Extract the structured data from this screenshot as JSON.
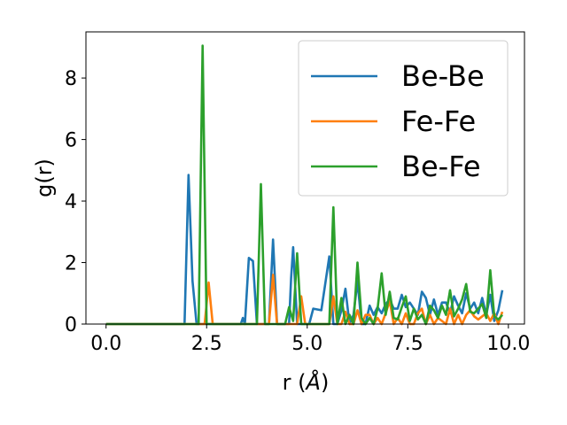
{
  "chart_data": {
    "type": "line",
    "title": "",
    "xlabel_main": "r (",
    "xlabel_unit": "Å",
    "xlabel_end": ")",
    "ylabel": "g(r)",
    "xlim": [
      -0.5,
      10.4
    ],
    "ylim": [
      0,
      9.5
    ],
    "xticks": [
      0.0,
      2.5,
      5.0,
      7.5,
      10.0
    ],
    "xtick_labels": [
      "0.0",
      "2.5",
      "5.0",
      "7.5",
      "10.0"
    ],
    "yticks": [
      0,
      2,
      4,
      6,
      8
    ],
    "ytick_labels": [
      "0",
      "2",
      "4",
      "6",
      "8"
    ],
    "grid": false,
    "legend_position": "top-right",
    "series": [
      {
        "name": "Be-Be",
        "color": "#1f77b4",
        "x": [
          0.0,
          1.95,
          2.05,
          2.15,
          2.25,
          3.35,
          3.4,
          3.45,
          3.55,
          3.65,
          3.75,
          4.05,
          4.15,
          4.25,
          4.55,
          4.6,
          4.65,
          4.75,
          4.85,
          5.05,
          5.15,
          5.35,
          5.55,
          5.65,
          5.75,
          5.85,
          5.95,
          6.05,
          6.15,
          6.25,
          6.35,
          6.45,
          6.55,
          6.65,
          6.75,
          6.85,
          6.95,
          7.05,
          7.15,
          7.25,
          7.35,
          7.45,
          7.55,
          7.65,
          7.75,
          7.85,
          7.95,
          8.05,
          8.15,
          8.25,
          8.35,
          8.45,
          8.55,
          8.65,
          8.75,
          8.85,
          8.95,
          9.05,
          9.15,
          9.25,
          9.35,
          9.45,
          9.55,
          9.65,
          9.75,
          9.85
        ],
        "y": [
          0.0,
          0.0,
          4.85,
          1.4,
          0.0,
          0.0,
          0.2,
          0.0,
          2.15,
          2.05,
          0.0,
          0.0,
          2.75,
          0.0,
          0.0,
          1.5,
          2.5,
          0.0,
          0.0,
          0.0,
          0.5,
          0.45,
          2.2,
          0.0,
          0.0,
          0.45,
          1.15,
          0.0,
          0.3,
          1.4,
          0.0,
          0.0,
          0.6,
          0.3,
          0.55,
          0.35,
          0.65,
          0.8,
          0.5,
          0.5,
          0.95,
          0.55,
          0.7,
          0.5,
          0.3,
          1.05,
          0.85,
          0.3,
          0.8,
          0.3,
          0.7,
          0.7,
          0.35,
          0.9,
          0.6,
          0.35,
          1.0,
          0.5,
          0.7,
          0.35,
          0.85,
          0.3,
          0.95,
          0.1,
          0.45,
          1.1
        ]
      },
      {
        "name": "Fe-Fe",
        "color": "#ff7f0e",
        "x": [
          0.0,
          2.45,
          2.55,
          2.65,
          4.05,
          4.15,
          4.25,
          4.75,
          4.85,
          4.95,
          5.55,
          5.65,
          5.75,
          5.85,
          5.95,
          6.05,
          6.15,
          6.25,
          6.35,
          6.45,
          6.55,
          6.65,
          6.75,
          6.85,
          6.95,
          7.05,
          7.15,
          7.25,
          7.35,
          7.45,
          7.55,
          7.65,
          7.75,
          7.85,
          7.95,
          8.05,
          8.15,
          8.25,
          8.35,
          8.45,
          8.55,
          8.65,
          8.75,
          8.85,
          8.95,
          9.05,
          9.15,
          9.25,
          9.35,
          9.45,
          9.55,
          9.65,
          9.75,
          9.85
        ],
        "y": [
          0.0,
          0.0,
          1.35,
          0.0,
          0.0,
          1.6,
          0.0,
          0.0,
          0.9,
          0.0,
          0.0,
          0.9,
          0.0,
          0.0,
          0.4,
          0.0,
          0.0,
          0.45,
          0.0,
          0.3,
          0.3,
          0.0,
          0.2,
          0.0,
          0.35,
          0.75,
          0.0,
          0.2,
          0.0,
          0.35,
          0.0,
          0.0,
          0.35,
          0.5,
          0.0,
          0.3,
          0.0,
          0.2,
          0.1,
          0.0,
          0.5,
          0.0,
          0.3,
          0.0,
          0.3,
          0.45,
          0.25,
          0.15,
          0.25,
          0.35,
          0.1,
          0.35,
          0.0,
          0.4
        ]
      },
      {
        "name": "Be-Fe",
        "color": "#2ca02c",
        "x": [
          0.0,
          2.3,
          2.4,
          2.5,
          2.6,
          3.75,
          3.85,
          3.95,
          4.45,
          4.55,
          4.65,
          4.75,
          4.85,
          5.45,
          5.55,
          5.65,
          5.75,
          5.85,
          5.95,
          6.05,
          6.15,
          6.25,
          6.35,
          6.45,
          6.55,
          6.65,
          6.75,
          6.85,
          6.95,
          7.05,
          7.15,
          7.25,
          7.35,
          7.45,
          7.55,
          7.65,
          7.75,
          7.85,
          7.95,
          8.05,
          8.15,
          8.25,
          8.35,
          8.45,
          8.55,
          8.65,
          8.75,
          8.85,
          8.95,
          9.05,
          9.15,
          9.25,
          9.35,
          9.45,
          9.55,
          9.65,
          9.75,
          9.85
        ],
        "y": [
          0.0,
          0.0,
          9.05,
          0.0,
          0.0,
          0.0,
          4.55,
          0.0,
          0.0,
          0.55,
          0.1,
          2.3,
          0.0,
          0.0,
          0.0,
          3.8,
          0.0,
          0.85,
          0.0,
          0.3,
          0.0,
          2.0,
          0.2,
          0.0,
          0.2,
          0.0,
          0.5,
          1.65,
          0.3,
          1.05,
          0.2,
          0.15,
          0.55,
          0.9,
          0.1,
          0.5,
          0.15,
          0.3,
          0.0,
          0.6,
          0.45,
          0.2,
          0.6,
          0.3,
          1.1,
          0.25,
          0.5,
          0.8,
          1.3,
          0.4,
          0.35,
          0.5,
          0.65,
          0.2,
          1.75,
          0.25,
          0.15,
          0.3
        ]
      }
    ]
  }
}
